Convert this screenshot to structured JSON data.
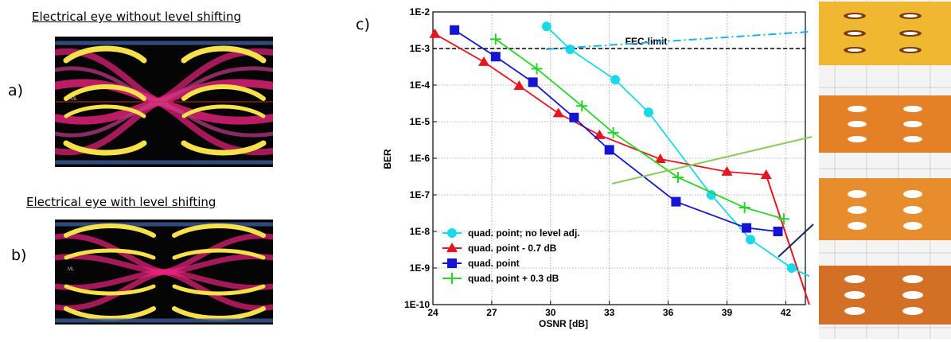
{
  "panel_a": {
    "label": "a)",
    "title": "Electrical eye without level shifting",
    "marker": "ML"
  },
  "panel_b": {
    "label": "b)",
    "title": "Electrical eye with level shifting",
    "marker": "ML"
  },
  "panel_c": {
    "label": "c)"
  },
  "colors": {
    "cyan": "#19d8e8",
    "red": "#e8141e",
    "blue": "#1414d2",
    "green": "#28d428",
    "eye_yellow": "#f7e14a",
    "eye_magenta": "#e8227a",
    "eye_black": "#050505"
  },
  "chart_data": {
    "type": "line",
    "xlabel": "OSNR [dB]",
    "ylabel": "BER",
    "xlim": [
      24,
      43
    ],
    "ylim": [
      1e-10,
      0.01
    ],
    "log_y": true,
    "grid": true,
    "legend_position": "bottom-left",
    "x_ticks": [
      "24",
      "27",
      "30",
      "33",
      "36",
      "39",
      "42"
    ],
    "y_ticks": [
      "1E-2",
      "1E-3",
      "1E-4",
      "1E-5",
      "1E-6",
      "1E-7",
      "1E-8",
      "1E-9",
      "1E-10"
    ],
    "reference_line": {
      "label": "FEC-limit",
      "y": 0.001
    },
    "series": [
      {
        "name": "quad. point; no level adj.",
        "color": "#19d8e8",
        "marker": "circle",
        "x": [
          29.8,
          31.0,
          33.3,
          35.0,
          38.2,
          40.2,
          42.3
        ],
        "y": [
          0.004,
          0.00095,
          0.00014,
          1.8e-05,
          1e-07,
          6e-09,
          1e-09
        ]
      },
      {
        "name": "quad. point - 0.7 dB",
        "color": "#e8141e",
        "marker": "triangle",
        "x": [
          24.1,
          26.6,
          28.4,
          30.4,
          32.5,
          35.6,
          39.0,
          41.0
        ],
        "y": [
          0.0025,
          0.00043,
          9.5e-05,
          1.7e-05,
          4.3e-06,
          9.5e-07,
          4.3e-07,
          3.5e-07
        ]
      },
      {
        "name": "quad. point",
        "color": "#1414d2",
        "marker": "square",
        "x": [
          25.1,
          27.2,
          29.1,
          31.2,
          33.0,
          36.4,
          40.0,
          41.6
        ],
        "y": [
          0.0032,
          0.0006,
          0.00012,
          1.3e-05,
          1.7e-06,
          6.5e-08,
          1.25e-08,
          1e-08
        ]
      },
      {
        "name": "quad. point + 0.3 dB",
        "color": "#28d428",
        "marker": "plus",
        "x": [
          27.2,
          29.3,
          31.6,
          33.2,
          36.5,
          39.9,
          41.9
        ],
        "y": [
          0.0018,
          0.00028,
          2.7e-05,
          5e-06,
          3e-07,
          4.5e-08,
          2.2e-08
        ]
      }
    ],
    "tail_lines": [
      {
        "color": "#e8141e",
        "x": [
          41.0,
          43.2
        ],
        "y": [
          3.5e-07,
          1e-10
        ]
      },
      {
        "color": "#19d8e8",
        "x": [
          42.3,
          43.2
        ],
        "y": [
          1e-09,
          6e-10
        ]
      }
    ]
  }
}
